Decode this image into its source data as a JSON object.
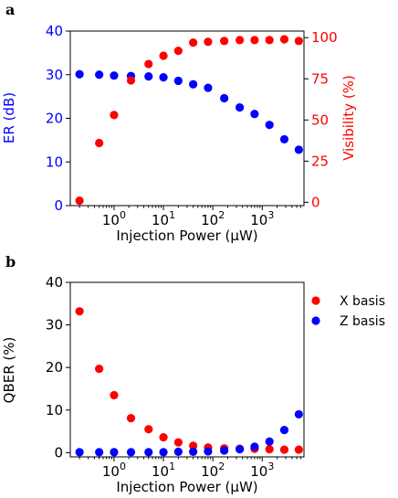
{
  "colors": {
    "blue": "#0000ff",
    "red": "#ff0000",
    "axis": "#000000"
  },
  "chart_data": [
    {
      "type": "scatter",
      "panel_label": "a",
      "xlabel": "Injection Power (μW)",
      "xscale": "log",
      "xlim": [
        0.13,
        7000
      ],
      "x_ticks": [
        1,
        10,
        100,
        1000
      ],
      "x_tick_labels": [
        "10⁰",
        "10¹",
        "10²",
        "10³"
      ],
      "ylabel_left": "ER (dB)",
      "ylabel_right": "Visibility (%)",
      "ylim_left": [
        0,
        40
      ],
      "ylim_right": [
        -2,
        104
      ],
      "y_ticks_left": [
        0,
        10,
        20,
        30,
        40
      ],
      "y_ticks_right": [
        0,
        25,
        50,
        75,
        100
      ],
      "x": [
        0.2,
        0.5,
        1,
        2.2,
        5,
        10,
        20,
        40,
        80,
        170,
        350,
        700,
        1400,
        2800,
        5500
      ],
      "series": [
        {
          "axis": "left",
          "color": "#0000ff",
          "values": [
            30.1,
            30.0,
            29.8,
            29.7,
            29.6,
            29.4,
            28.6,
            27.8,
            27.0,
            24.6,
            22.5,
            21.0,
            18.5,
            15.2,
            12.8
          ]
        },
        {
          "axis": "right",
          "color": "#ff0000",
          "values": [
            1,
            36,
            53,
            74,
            84,
            89,
            92,
            97,
            97.5,
            98,
            98.5,
            98.5,
            98.5,
            99,
            98
          ]
        }
      ]
    },
    {
      "type": "scatter",
      "panel_label": "b",
      "xlabel": "Injection Power (μW)",
      "xscale": "log",
      "xlim": [
        0.13,
        7000
      ],
      "x_ticks": [
        1,
        10,
        100,
        1000
      ],
      "x_tick_labels": [
        "10⁰",
        "10¹",
        "10²",
        "10³"
      ],
      "ylabel": "QBER (%)",
      "ylim": [
        -1,
        40
      ],
      "y_ticks": [
        0,
        10,
        20,
        30,
        40
      ],
      "legend_position": "outside-right-top",
      "x": [
        0.2,
        0.5,
        1,
        2.2,
        5,
        10,
        20,
        40,
        80,
        170,
        350,
        700,
        1400,
        2800,
        5500
      ],
      "series": [
        {
          "name": "X basis",
          "color": "#ff0000",
          "values": [
            33.2,
            19.7,
            13.5,
            8.1,
            5.5,
            3.6,
            2.4,
            1.6,
            1.2,
            1.0,
            0.9,
            0.9,
            0.8,
            0.7,
            0.7
          ]
        },
        {
          "name": "Z basis",
          "color": "#0000ff",
          "values": [
            0.1,
            0.1,
            0.1,
            0.1,
            0.1,
            0.1,
            0.2,
            0.2,
            0.3,
            0.5,
            0.8,
            1.4,
            2.6,
            5.3,
            9.0
          ]
        }
      ]
    }
  ]
}
